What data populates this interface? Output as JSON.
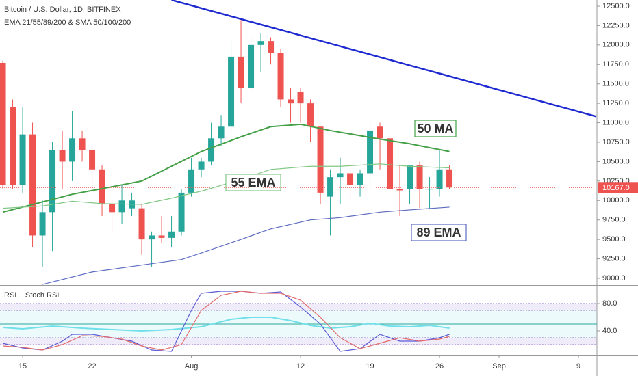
{
  "chart_data": [
    {
      "type": "candlestick",
      "title": "Bitcoin / U.S. Dollar, 1D, BITFINEX",
      "subtitle": "EMA 21/55/89/200 & SMA 50/100/200",
      "up_color": "#26a69a",
      "down_color": "#ef5350",
      "xlim": [
        -2.28,
        57.86
      ],
      "xticks": [
        {
          "value": 0,
          "label": "15"
        },
        {
          "value": 7,
          "label": "22"
        },
        {
          "value": 17,
          "label": "Aug"
        },
        {
          "value": 28,
          "label": "12"
        },
        {
          "value": 35,
          "label": "19"
        },
        {
          "value": 42,
          "label": "26"
        },
        {
          "value": 48,
          "label": "Sep"
        },
        {
          "value": 56,
          "label": "9"
        }
      ],
      "ylim": [
        8912,
        12579
      ],
      "yticks": [
        {
          "value": 9000,
          "label": "9000.0"
        },
        {
          "value": 9250,
          "label": "9250.0"
        },
        {
          "value": 9500,
          "label": "9500.0"
        },
        {
          "value": 9750,
          "label": "9750.0"
        },
        {
          "value": 10000,
          "label": "10000.0"
        },
        {
          "value": 10250,
          "label": "10250.0"
        },
        {
          "value": 10500,
          "label": "10500.0"
        },
        {
          "value": 10750,
          "label": "10750.0"
        },
        {
          "value": 11000,
          "label": "11000.0"
        },
        {
          "value": 11250,
          "label": "11250.0"
        },
        {
          "value": 11500,
          "label": "11500.0"
        },
        {
          "value": 11750,
          "label": "11750.0"
        },
        {
          "value": 12000,
          "label": "12000.0"
        },
        {
          "value": 12250,
          "label": "12250.0"
        },
        {
          "value": 12500,
          "label": "12500.0"
        }
      ],
      "x": [
        -2,
        -1,
        0,
        1,
        2,
        3,
        4,
        5,
        6,
        7,
        8,
        9,
        10,
        11,
        12,
        13,
        14,
        15,
        16,
        17,
        18,
        19,
        20,
        21,
        22,
        23,
        24,
        25,
        26,
        27,
        28,
        29,
        30,
        31,
        32,
        33,
        34,
        35,
        36,
        37,
        38,
        39,
        40,
        41,
        42,
        43
      ],
      "open": [
        11770,
        11200,
        10200,
        10850,
        9550,
        9850,
        10650,
        10500,
        10800,
        10650,
        10400,
        9950,
        9850,
        9900,
        9900,
        9500,
        9550,
        9520,
        9600,
        10100,
        10400,
        10500,
        10800,
        10950,
        11850,
        11450,
        12000,
        12050,
        11900,
        11300,
        11400,
        11250,
        10950,
        10050,
        10300,
        10350,
        10200,
        10350,
        10950,
        10800,
        10150,
        10150,
        10450,
        10150,
        10150,
        10400
      ],
      "high": [
        11800,
        11300,
        11200,
        11000,
        10000,
        10750,
        10900,
        11150,
        10900,
        10700,
        10450,
        10000,
        10200,
        10100,
        9950,
        9600,
        9800,
        9800,
        10150,
        10550,
        10550,
        11000,
        11100,
        12050,
        12320,
        12100,
        12150,
        12100,
        11950,
        11450,
        11450,
        11300,
        10950,
        10400,
        10550,
        10450,
        10400,
        11000,
        11000,
        10850,
        10450,
        10450,
        10500,
        10300,
        10650,
        10450
      ],
      "low": [
        10150,
        10150,
        10100,
        9400,
        9150,
        9350,
        10150,
        10250,
        10500,
        10100,
        9800,
        9600,
        9700,
        9800,
        9300,
        9150,
        9450,
        9400,
        9550,
        10050,
        10300,
        10450,
        10700,
        10900,
        11250,
        11400,
        11650,
        11750,
        11200,
        11000,
        11000,
        10750,
        9950,
        9550,
        9950,
        10000,
        10050,
        10150,
        10400,
        10100,
        9800,
        9950,
        9900,
        9900,
        10050,
        10150
      ],
      "close": [
        10200,
        10200,
        10850,
        9550,
        9850,
        10650,
        10500,
        10800,
        10650,
        10400,
        9950,
        9850,
        10000,
        10000,
        9500,
        9550,
        9520,
        9600,
        10100,
        10400,
        10500,
        10800,
        10950,
        11850,
        11450,
        12000,
        12050,
        11900,
        11300,
        11250,
        11250,
        10950,
        10100,
        10300,
        10350,
        10200,
        10350,
        10900,
        10800,
        10150,
        10130,
        10450,
        10150,
        10150,
        10400,
        10167
      ],
      "last_price": {
        "value": 10167,
        "label": "10167.0"
      },
      "series": [
        {
          "name": "50 MA",
          "color": "#43a047",
          "x": [
            -2,
            5,
            12,
            18,
            22,
            25,
            28,
            31,
            36,
            39,
            43
          ],
          "values": [
            9850,
            10080,
            10250,
            10630,
            10820,
            10950,
            10980,
            10900,
            10790,
            10730,
            10630
          ]
        },
        {
          "name": "55 EMA",
          "color": "#81c784",
          "x": [
            -2,
            2,
            5,
            8,
            12,
            15,
            18,
            22,
            25,
            29,
            32,
            36,
            39,
            43
          ],
          "values": [
            9900,
            9930,
            9990,
            9960,
            9950,
            10030,
            10120,
            10270,
            10400,
            10440,
            10440,
            10470,
            10440,
            10420
          ]
        },
        {
          "name": "89 EMA",
          "color": "#5c6bc0",
          "x": [
            2,
            7,
            12,
            16,
            18,
            22,
            25,
            29,
            32,
            36,
            39,
            43
          ],
          "values": [
            8920,
            9080,
            9170,
            9240,
            9325,
            9500,
            9635,
            9750,
            9780,
            9850,
            9880,
            9915
          ]
        }
      ],
      "trendline": {
        "color": "#1e2ad0",
        "x": [
          15,
          57.8
        ],
        "values": [
          12579,
          11080
        ]
      }
    },
    {
      "type": "line",
      "title": "RSI + Stoch RSI",
      "ylim": [
        4,
        106
      ],
      "yticks": [
        {
          "value": 80,
          "label": "80.0"
        },
        {
          "value": 40,
          "label": "40.0"
        }
      ],
      "levels": [
        80,
        70,
        50,
        30,
        20
      ],
      "series": [
        {
          "color": "#6fe0ea",
          "x": [
            -2,
            0,
            3,
            6,
            9,
            12,
            15,
            18,
            21,
            23,
            25,
            27,
            29,
            31,
            33,
            35,
            37,
            39,
            41,
            43
          ],
          "values": [
            45,
            43,
            47,
            44,
            42,
            40,
            42,
            46,
            57,
            60,
            60,
            55,
            48,
            44,
            46,
            51,
            47,
            46,
            48,
            44
          ]
        },
        {
          "color": "#5b5bd6",
          "x": [
            -2,
            0,
            2,
            4,
            5,
            7,
            9,
            11,
            13,
            15,
            17,
            18,
            20,
            22,
            24,
            26,
            28,
            30,
            31,
            32,
            34,
            36,
            38,
            40,
            42,
            43
          ],
          "values": [
            22,
            15,
            12,
            25,
            35,
            35,
            30,
            25,
            12,
            10,
            70,
            95,
            98,
            98,
            95,
            97,
            75,
            50,
            30,
            10,
            14,
            35,
            25,
            25,
            30,
            35
          ]
        },
        {
          "color": "#e36a6a",
          "x": [
            -2,
            0,
            2,
            4,
            6,
            8,
            10,
            12,
            14,
            16,
            18,
            20,
            22,
            24,
            26,
            28,
            30,
            32,
            34,
            36,
            38,
            40,
            42,
            43
          ],
          "values": [
            18,
            16,
            12,
            20,
            33,
            32,
            28,
            18,
            12,
            20,
            70,
            92,
            98,
            95,
            95,
            85,
            60,
            30,
            14,
            22,
            30,
            25,
            28,
            32
          ]
        }
      ]
    }
  ]
}
